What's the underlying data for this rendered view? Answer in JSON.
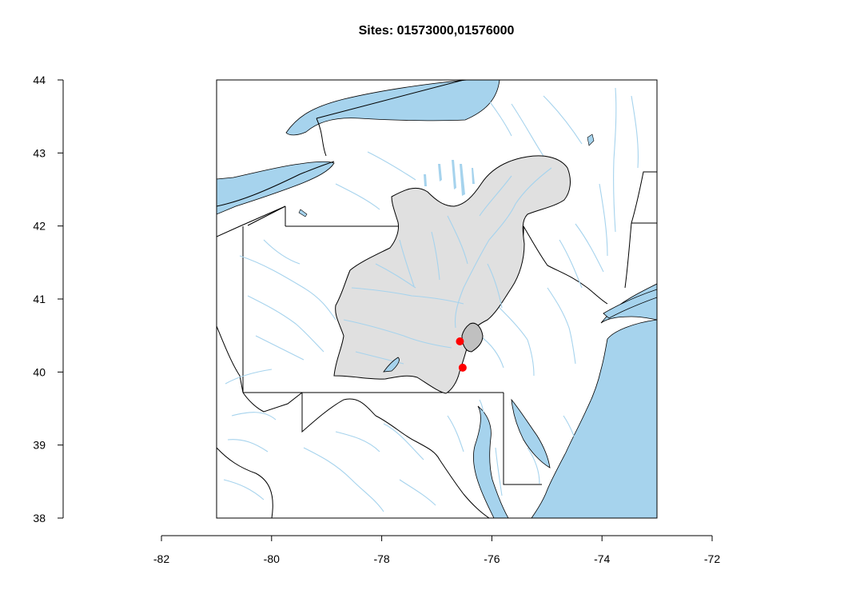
{
  "title": "Sites: 01573000,01576000",
  "map": {
    "lon_range": [
      -81,
      -73
    ],
    "lat_range": [
      38,
      44
    ],
    "x_axis": {
      "range": [
        -82,
        -72
      ],
      "ticks": [
        -82,
        -80,
        -78,
        -76,
        -74,
        -72
      ]
    },
    "y_axis": {
      "range": [
        38,
        44
      ],
      "ticks": [
        38,
        39,
        40,
        41,
        42,
        43,
        44
      ]
    },
    "colors": {
      "water": "#a6d3ed",
      "basin_fill": "#e0e0e0",
      "subbasin_fill": "#c0c0c0",
      "site_marker": "#ff0000",
      "border": "#000000"
    },
    "sites": [
      {
        "id": "01573000",
        "lon": -76.58,
        "lat": 40.42
      },
      {
        "id": "01576000",
        "lon": -76.53,
        "lat": 40.06
      }
    ]
  }
}
